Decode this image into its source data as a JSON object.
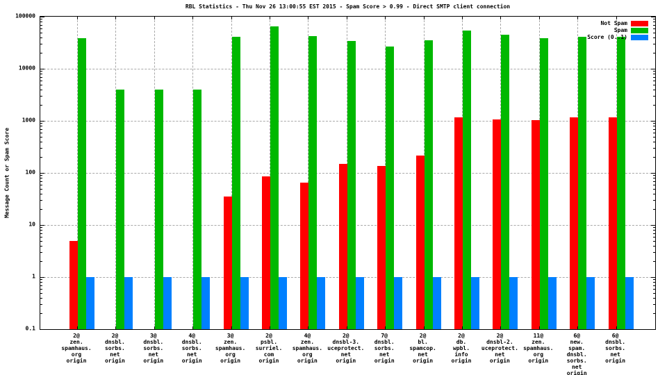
{
  "chart_data": {
    "type": "bar",
    "title": "RBL Statistics - Thu Nov 26 13:00:55 EST 2015 - Spam Score > 0.99 - Direct SMTP client connection",
    "ylabel": "Message Count or Spam Score",
    "xlabel": "",
    "scale": "log",
    "ylim": [
      0.1,
      100000
    ],
    "grid": true,
    "legend_position": "top-right-inside",
    "y_tick_labels": [
      "100000",
      "10000",
      "1000",
      "100",
      "10",
      "1",
      "0.1"
    ],
    "categories": [
      [
        "2@",
        "zen.",
        "spamhaus.",
        "org",
        "origin"
      ],
      [
        "2@",
        "dnsbl.",
        "sorbs.",
        "net",
        "origin"
      ],
      [
        "3@",
        "dnsbl.",
        "sorbs.",
        "net",
        "origin"
      ],
      [
        "4@",
        "dnsbl.",
        "sorbs.",
        "net",
        "origin"
      ],
      [
        "3@",
        "zen.",
        "spamhaus.",
        "org",
        "origin"
      ],
      [
        "2@",
        "psbl.",
        "surriel.",
        "com",
        "origin"
      ],
      [
        "4@",
        "zen.",
        "spamhaus.",
        "org",
        "origin"
      ],
      [
        "2@",
        "dnsbl-3.",
        "uceprotect.",
        "net",
        "origin"
      ],
      [
        "7@",
        "dnsbl.",
        "sorbs.",
        "net",
        "origin"
      ],
      [
        "2@",
        "bl.",
        "spamcop.",
        "net",
        "origin"
      ],
      [
        "2@",
        "db.",
        "wpbl.",
        "info",
        "origin"
      ],
      [
        "2@",
        "dnsbl-2.",
        "uceprotect.",
        "net",
        "origin"
      ],
      [
        "11@",
        "zen.",
        "spamhaus.",
        "org",
        "origin"
      ],
      [
        "6@",
        "new.",
        "spam.",
        "dnsbl.",
        "sorbs.",
        "net",
        "origin"
      ],
      [
        "6@",
        "dnsbl.",
        "sorbs.",
        "net",
        "origin"
      ]
    ],
    "series": [
      {
        "name": "Not Spam",
        "color": "#ff0000",
        "values": [
          5,
          0,
          0,
          0,
          35,
          85,
          65,
          150,
          135,
          215,
          1160,
          1070,
          1030,
          1160,
          1160
        ]
      },
      {
        "name": "Spam",
        "color": "#00b800",
        "values": [
          39000,
          4000,
          4000,
          4000,
          41000,
          66000,
          43000,
          34000,
          27000,
          35000,
          54000,
          45000,
          39000,
          41000,
          41000
        ]
      },
      {
        "name": "Score (0..1)",
        "color": "#0080ff",
        "values": [
          1,
          1,
          1,
          1,
          1,
          1,
          1,
          1,
          1,
          1,
          1,
          1,
          1,
          1,
          1
        ]
      }
    ]
  },
  "colors": {
    "grid": "#a8a8a8",
    "frame": "#000000",
    "background": "#ffffff"
  }
}
